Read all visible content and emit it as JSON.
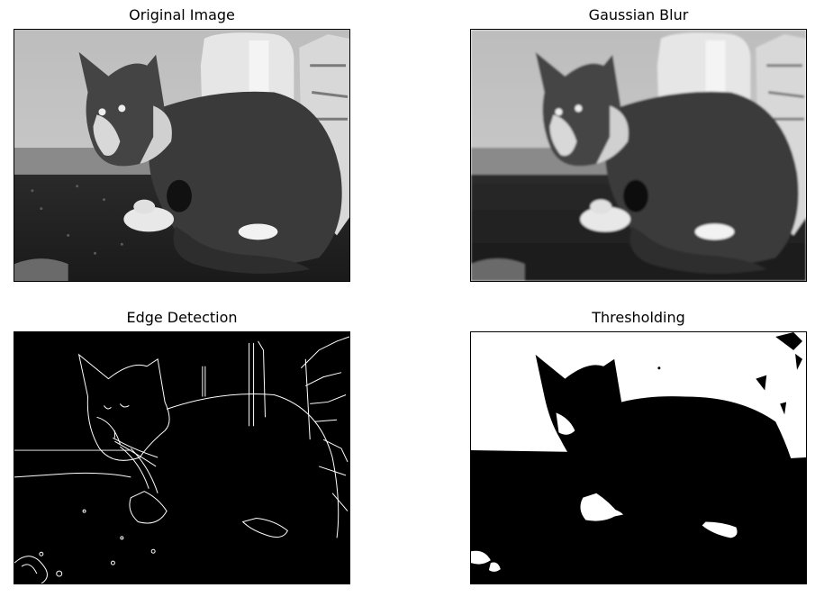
{
  "panels": [
    {
      "title": "Original Image",
      "kind": "original"
    },
    {
      "title": "Gaussian Blur",
      "kind": "blur"
    },
    {
      "title": "Edge Detection",
      "kind": "edges"
    },
    {
      "title": "Thresholding",
      "kind": "threshold"
    }
  ],
  "colors": {
    "background": "#ffffff",
    "frame": "#000000"
  }
}
